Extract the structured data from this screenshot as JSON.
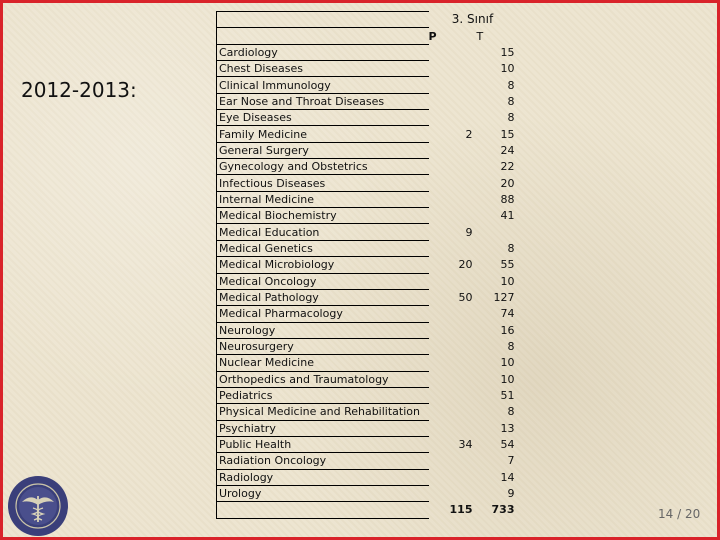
{
  "heading": {
    "year_label": "2012-2013:"
  },
  "table": {
    "group_header": "3. Sınıf",
    "col_p": "P",
    "col_t": "T",
    "rows": [
      {
        "name": "Cardiology",
        "p": "",
        "t": "15"
      },
      {
        "name": "Chest Diseases",
        "p": "",
        "t": "10"
      },
      {
        "name": "Clinical Immunology",
        "p": "",
        "t": "8"
      },
      {
        "name": "Ear Nose and Throat Diseases",
        "p": "",
        "t": "8"
      },
      {
        "name": "Eye Diseases",
        "p": "",
        "t": "8"
      },
      {
        "name": "Family Medicine",
        "p": "2",
        "t": "15"
      },
      {
        "name": "General Surgery",
        "p": "",
        "t": "24"
      },
      {
        "name": "Gynecology and Obstetrics",
        "p": "",
        "t": "22"
      },
      {
        "name": "Infectious Diseases",
        "p": "",
        "t": "20"
      },
      {
        "name": "Internal Medicine",
        "p": "",
        "t": "88"
      },
      {
        "name": "Medical Biochemistry",
        "p": "",
        "t": "41"
      },
      {
        "name": "Medical Education",
        "p": "9",
        "t": ""
      },
      {
        "name": "Medical Genetics",
        "p": "",
        "t": "8"
      },
      {
        "name": "Medical Microbiology",
        "p": "20",
        "t": "55"
      },
      {
        "name": "Medical Oncology",
        "p": "",
        "t": "10"
      },
      {
        "name": "Medical Pathology",
        "p": "50",
        "t": "127"
      },
      {
        "name": "Medical Pharmacology",
        "p": "",
        "t": "74"
      },
      {
        "name": "Neurology",
        "p": "",
        "t": "16"
      },
      {
        "name": "Neurosurgery",
        "p": "",
        "t": "8"
      },
      {
        "name": "Nuclear Medicine",
        "p": "",
        "t": "10"
      },
      {
        "name": "Orthopedics and Traumatology",
        "p": "",
        "t": "10"
      },
      {
        "name": "Pediatrics",
        "p": "",
        "t": "51"
      },
      {
        "name": "Physical Medicine and Rehabilitation",
        "p": "",
        "t": "8"
      },
      {
        "name": "Psychiatry",
        "p": "",
        "t": "13"
      },
      {
        "name": "Public Health",
        "p": "34",
        "t": "54"
      },
      {
        "name": "Radiation Oncology",
        "p": "",
        "t": "7"
      },
      {
        "name": "Radiology",
        "p": "",
        "t": "14"
      },
      {
        "name": "Urology",
        "p": "",
        "t": "9"
      }
    ],
    "total_p": "115",
    "total_t": "733"
  },
  "footer": {
    "page_indicator": "14 / 20"
  },
  "colors": {
    "frame": "#d9232a",
    "seal": "#3a3f7a"
  }
}
